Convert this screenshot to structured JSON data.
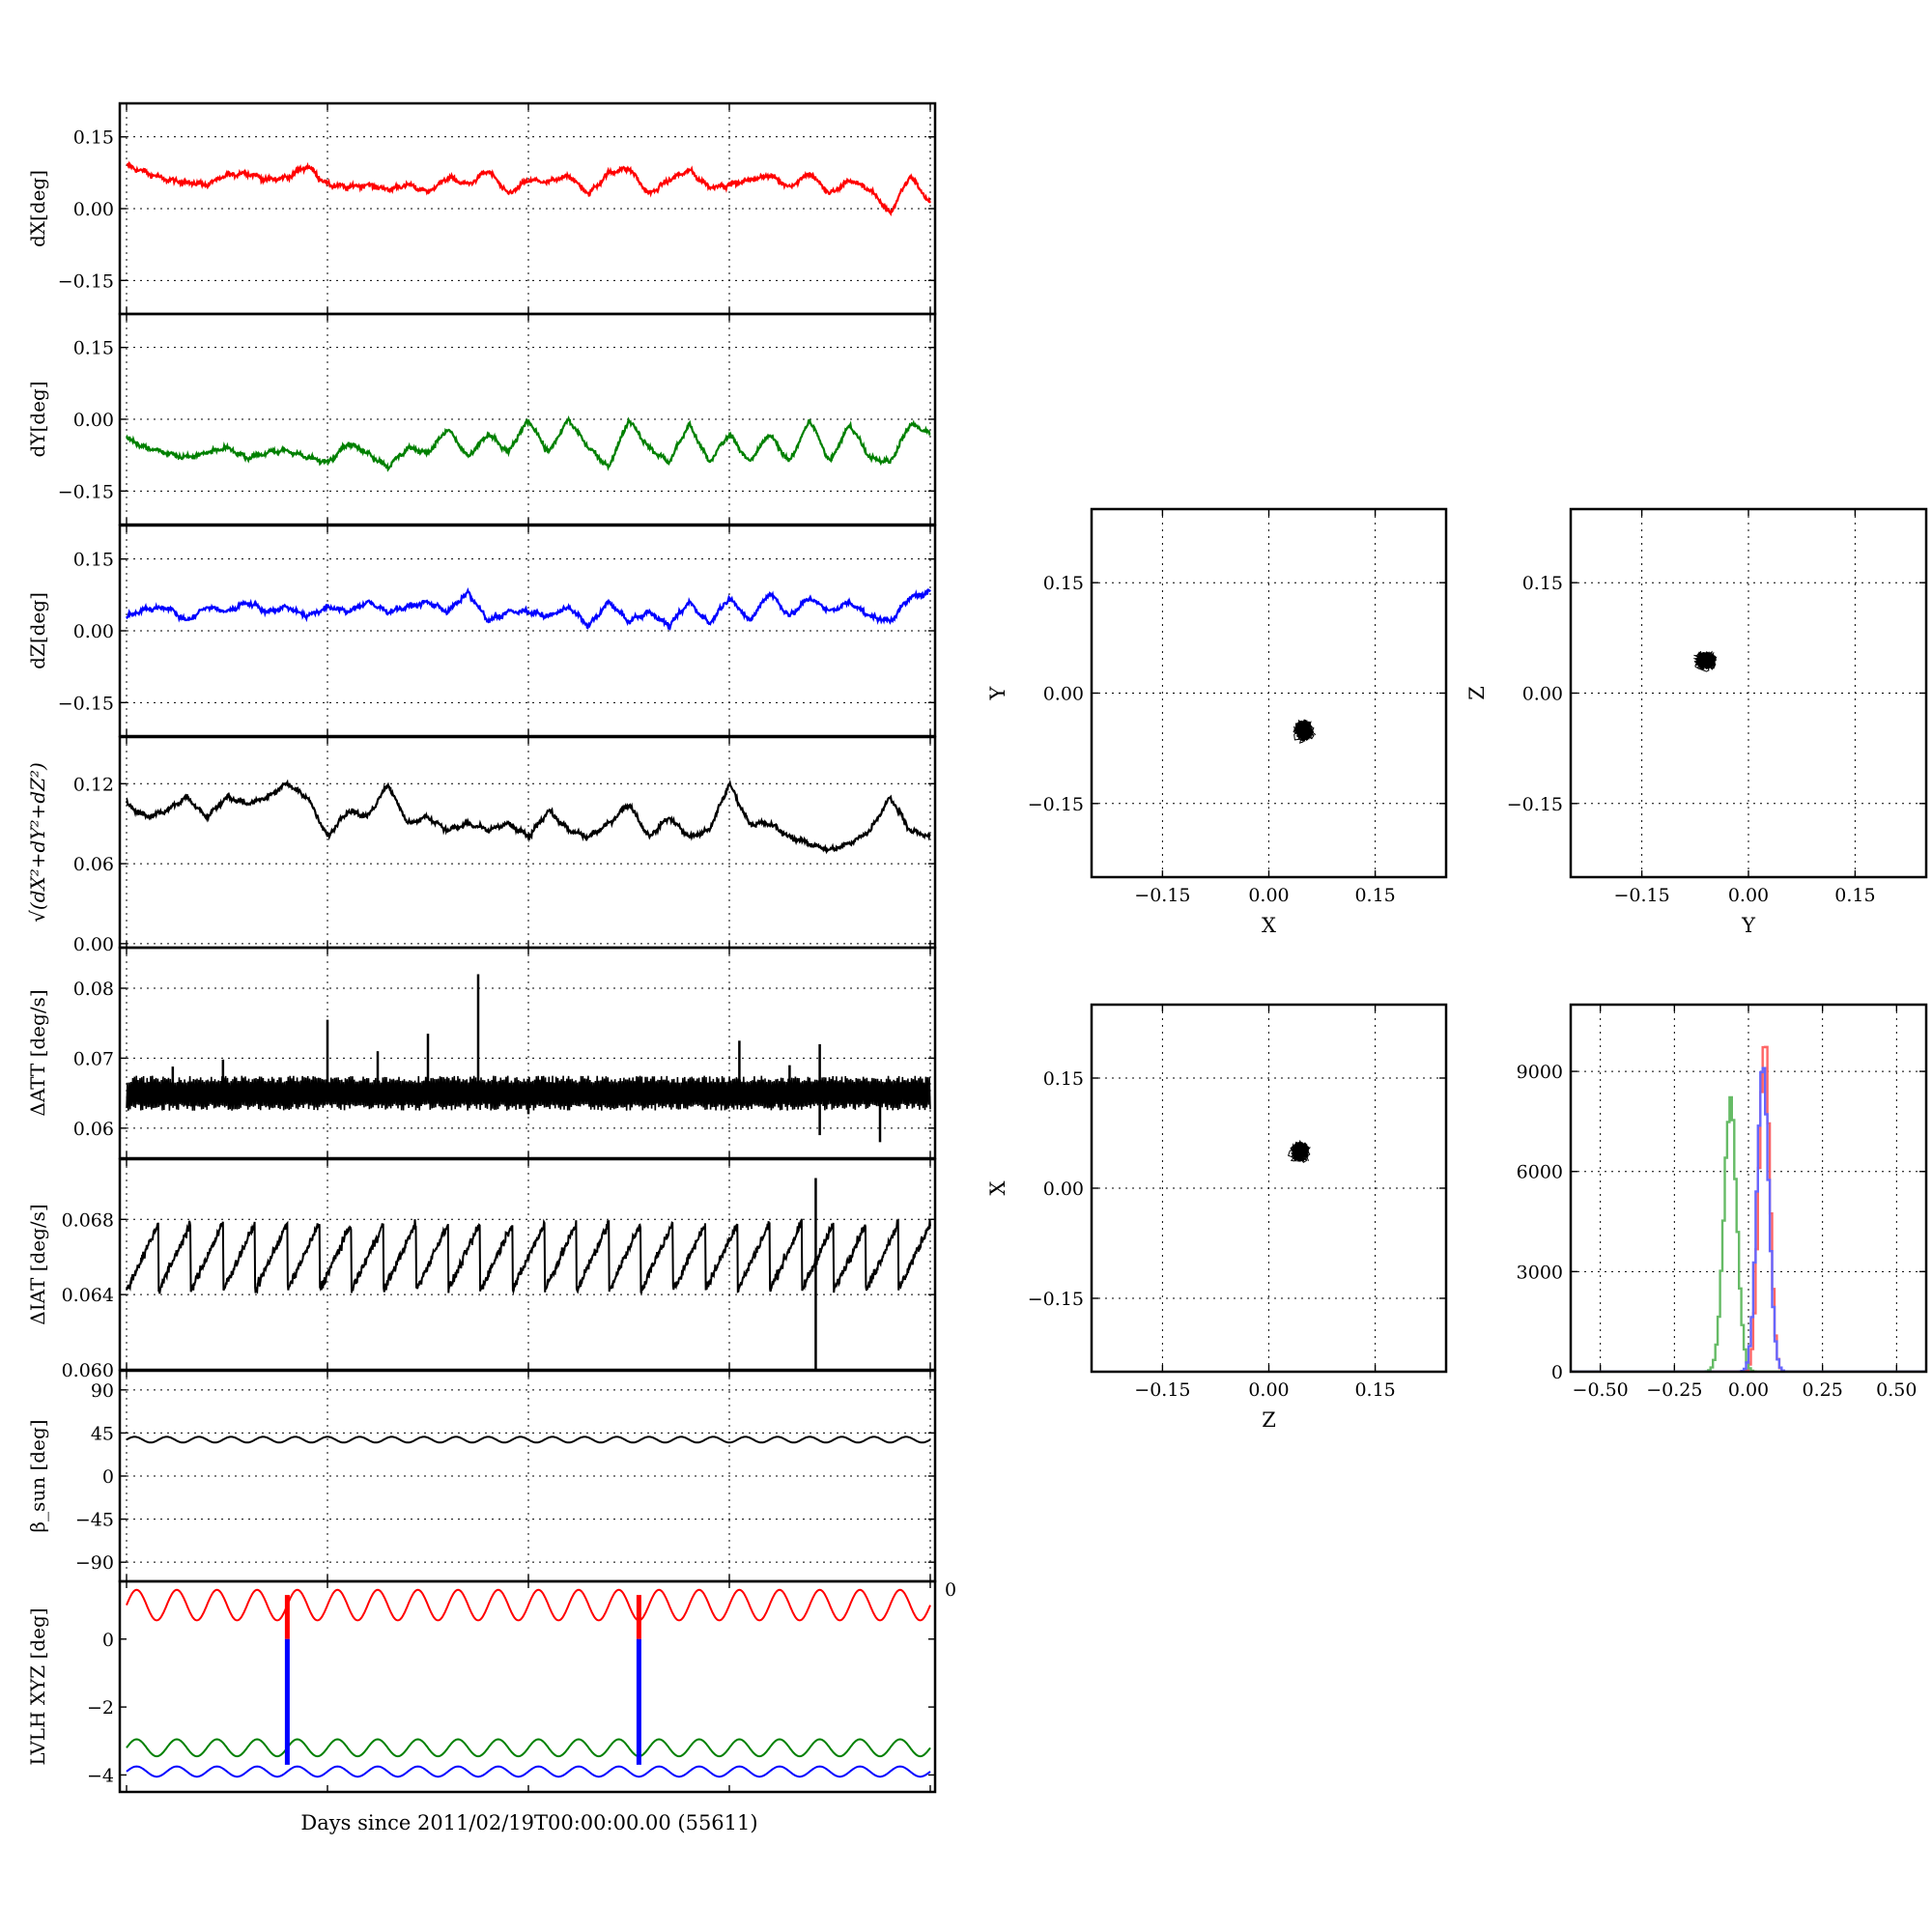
{
  "figure": {
    "xlabel": "Days since 2011/02/19T00:00:00.00 (55611)",
    "stray_tick": "0"
  },
  "colors": {
    "x": "#ff0000",
    "y": "#008000",
    "z": "#0000ff",
    "k": "#000000",
    "hist_x": "#ff6666",
    "hist_y": "#66bb66",
    "hist_z": "#6666ff"
  },
  "chart_data": [
    {
      "id": "dx",
      "type": "line",
      "ylabel": "dX[deg]",
      "ylim": [
        -0.22,
        0.22
      ],
      "yticks": [
        0.15,
        0.0,
        -0.15
      ],
      "ytick_labels": [
        "0.15",
        "0.00",
        "−0.15"
      ],
      "xlim": [
        0,
        40
      ],
      "xticks": [
        0,
        10,
        20,
        30,
        40
      ],
      "grid": true,
      "color": "x",
      "series": [
        {
          "x": [
            0,
            1,
            2,
            3,
            4,
            5,
            6,
            7,
            8,
            9,
            10,
            11,
            12,
            13,
            14,
            15,
            16,
            17,
            18,
            19,
            20,
            21,
            22,
            23,
            24,
            25,
            26,
            27,
            28,
            29,
            30,
            31,
            32,
            33,
            34,
            35,
            36,
            37,
            38,
            39,
            40
          ],
          "y": [
            0.09,
            0.075,
            0.06,
            0.055,
            0.05,
            0.07,
            0.075,
            0.06,
            0.065,
            0.09,
            0.05,
            0.045,
            0.05,
            0.04,
            0.05,
            0.035,
            0.065,
            0.05,
            0.08,
            0.03,
            0.06,
            0.055,
            0.07,
            0.03,
            0.075,
            0.085,
            0.03,
            0.06,
            0.08,
            0.045,
            0.05,
            0.06,
            0.07,
            0.045,
            0.075,
            0.03,
            0.06,
            0.04,
            -0.01,
            0.07,
            0.01
          ]
        }
      ]
    },
    {
      "id": "dy",
      "type": "line",
      "ylabel": "dY[deg]",
      "ylim": [
        -0.22,
        0.22
      ],
      "yticks": [
        0.15,
        0.0,
        -0.15
      ],
      "ytick_labels": [
        "0.15",
        "0.00",
        "−0.15"
      ],
      "xlim": [
        0,
        40
      ],
      "xticks": [
        0,
        10,
        20,
        30,
        40
      ],
      "grid": true,
      "color": "y",
      "series": [
        {
          "x": [
            0,
            1,
            2,
            3,
            4,
            5,
            6,
            7,
            8,
            9,
            10,
            11,
            12,
            13,
            14,
            15,
            16,
            17,
            18,
            19,
            20,
            21,
            22,
            23,
            24,
            25,
            26,
            27,
            28,
            29,
            30,
            31,
            32,
            33,
            34,
            35,
            36,
            37,
            38,
            39,
            40
          ],
          "y": [
            -0.04,
            -0.06,
            -0.07,
            -0.08,
            -0.07,
            -0.06,
            -0.08,
            -0.07,
            -0.065,
            -0.08,
            -0.09,
            -0.05,
            -0.07,
            -0.1,
            -0.06,
            -0.07,
            -0.02,
            -0.08,
            -0.03,
            -0.07,
            0.0,
            -0.07,
            0.0,
            -0.06,
            -0.1,
            0.0,
            -0.06,
            -0.09,
            -0.01,
            -0.09,
            -0.03,
            -0.09,
            -0.03,
            -0.09,
            0.0,
            -0.09,
            -0.01,
            -0.08,
            -0.09,
            -0.01,
            -0.03
          ]
        }
      ]
    },
    {
      "id": "dz",
      "type": "line",
      "ylabel": "dZ[deg]",
      "ylim": [
        -0.22,
        0.22
      ],
      "yticks": [
        0.15,
        0.0,
        -0.15
      ],
      "ytick_labels": [
        "0.15",
        "0.00",
        "−0.15"
      ],
      "xlim": [
        0,
        40
      ],
      "xticks": [
        0,
        10,
        20,
        30,
        40
      ],
      "grid": true,
      "color": "z",
      "series": [
        {
          "x": [
            0,
            1,
            2,
            3,
            4,
            5,
            6,
            7,
            8,
            9,
            10,
            11,
            12,
            13,
            14,
            15,
            16,
            17,
            18,
            19,
            20,
            21,
            22,
            23,
            24,
            25,
            26,
            27,
            28,
            29,
            30,
            31,
            32,
            33,
            34,
            35,
            36,
            37,
            38,
            39,
            40
          ],
          "y": [
            0.03,
            0.045,
            0.05,
            0.02,
            0.05,
            0.04,
            0.06,
            0.04,
            0.05,
            0.03,
            0.05,
            0.04,
            0.06,
            0.04,
            0.05,
            0.06,
            0.04,
            0.08,
            0.02,
            0.04,
            0.04,
            0.03,
            0.05,
            0.01,
            0.06,
            0.02,
            0.04,
            0.01,
            0.06,
            0.015,
            0.07,
            0.02,
            0.08,
            0.03,
            0.07,
            0.04,
            0.06,
            0.03,
            0.02,
            0.07,
            0.08
          ]
        }
      ]
    },
    {
      "id": "mag",
      "type": "line",
      "ylabel": "√(dX²+dY²+dZ²)",
      "ylim": [
        -0.003,
        0.155
      ],
      "yticks": [
        0.12,
        0.06,
        0.0
      ],
      "ytick_labels": [
        "0.12",
        "0.06",
        "0.00"
      ],
      "xlim": [
        0,
        40
      ],
      "xticks": [
        0,
        10,
        20,
        30,
        40
      ],
      "grid": true,
      "color": "k",
      "series": [
        {
          "x": [
            0,
            1,
            2,
            3,
            4,
            5,
            6,
            7,
            8,
            9,
            10,
            11,
            12,
            13,
            14,
            15,
            16,
            17,
            18,
            19,
            20,
            21,
            22,
            23,
            24,
            25,
            26,
            27,
            28,
            29,
            30,
            31,
            32,
            33,
            34,
            35,
            36,
            37,
            38,
            39,
            40
          ],
          "y": [
            0.105,
            0.095,
            0.1,
            0.11,
            0.095,
            0.11,
            0.105,
            0.11,
            0.12,
            0.11,
            0.08,
            0.1,
            0.095,
            0.12,
            0.09,
            0.095,
            0.085,
            0.09,
            0.085,
            0.09,
            0.08,
            0.1,
            0.085,
            0.08,
            0.09,
            0.105,
            0.08,
            0.095,
            0.08,
            0.085,
            0.12,
            0.09,
            0.09,
            0.08,
            0.075,
            0.07,
            0.075,
            0.085,
            0.11,
            0.085,
            0.08
          ]
        }
      ]
    },
    {
      "id": "datt",
      "type": "line",
      "ylabel": "ΔATT [deg/s]",
      "ylim": [
        0.0557,
        0.0858
      ],
      "yticks": [
        0.08,
        0.07,
        0.06
      ],
      "ytick_labels": [
        "0.08",
        "0.07",
        "0.06"
      ],
      "xlim": [
        0,
        40
      ],
      "xticks": [
        0,
        10,
        20,
        30,
        40
      ],
      "grid": true,
      "color": "k",
      "base": 0.065,
      "band": 0.0025,
      "spikes": [
        [
          2.3,
          0.0688
        ],
        [
          4.8,
          0.0698
        ],
        [
          10,
          0.0755
        ],
        [
          12.5,
          0.071
        ],
        [
          15,
          0.0735
        ],
        [
          17.5,
          0.082
        ],
        [
          20,
          0.062
        ],
        [
          30.5,
          0.0725
        ],
        [
          33,
          0.069
        ],
        [
          34.5,
          0.072
        ],
        [
          34.5,
          0.059
        ],
        [
          37.5,
          0.058
        ]
      ]
    },
    {
      "id": "diat",
      "type": "line",
      "ylabel": "ΔIAT [deg/s]",
      "ylim": [
        0.06,
        0.0712
      ],
      "yticks": [
        0.068,
        0.064,
        0.06
      ],
      "ytick_labels": [
        "0.068",
        "0.064",
        "0.060"
      ],
      "xlim": [
        0,
        40
      ],
      "xticks": [
        0,
        10,
        20,
        30,
        40
      ],
      "grid": true,
      "color": "k",
      "sawtooth": {
        "period": 1.6,
        "low": 0.0642,
        "high": 0.0678
      },
      "spikes": [
        [
          34.3,
          0.0702
        ],
        [
          34.3,
          0.06
        ]
      ]
    },
    {
      "id": "beta",
      "type": "line",
      "ylabel": "β_sun [deg]",
      "ylim": [
        -110,
        110
      ],
      "yticks": [
        90,
        45,
        0,
        -45,
        -90
      ],
      "ytick_labels": [
        "90",
        "45",
        "0",
        "−45",
        "−90"
      ],
      "xlim": [
        0,
        40
      ],
      "xticks": [
        0,
        10,
        20,
        30,
        40
      ],
      "grid": true,
      "color": "k",
      "level": 38,
      "amplitude": 3,
      "period": 1.6
    },
    {
      "id": "lvlh",
      "type": "line",
      "ylabel": "LVLH XYZ [deg]",
      "ylim": [
        -4.5,
        1.7
      ],
      "yticks": [
        0,
        -2,
        -4
      ],
      "ytick_labels": [
        "0",
        "−2",
        "−4"
      ],
      "xlim": [
        0,
        40
      ],
      "xticks": [
        0,
        10,
        20,
        30,
        40
      ],
      "grid": false,
      "series": [
        {
          "color": "x",
          "level": 1.0,
          "amplitude": 0.45,
          "period": 2.0
        },
        {
          "color": "y",
          "level": -3.2,
          "amplitude": 0.25,
          "period": 2.0
        },
        {
          "color": "z",
          "level": -3.9,
          "amplitude": 0.15,
          "period": 2.0
        }
      ],
      "jumps": [
        8,
        25.5
      ]
    },
    {
      "id": "xy",
      "type": "scatter",
      "xlabel": "X",
      "ylabel": "Y",
      "xlim": [
        -0.25,
        0.25
      ],
      "ylim": [
        -0.25,
        0.25
      ],
      "ticks": [
        -0.15,
        0.0,
        0.15
      ],
      "tick_labels": [
        "−0.15",
        "0.00",
        "0.15"
      ],
      "grid": true,
      "center": [
        0.05,
        -0.05
      ],
      "spread": [
        0.03,
        0.035
      ],
      "tilt": 0.6
    },
    {
      "id": "yz",
      "type": "scatter",
      "xlabel": "Y",
      "ylabel": "Z",
      "xlim": [
        -0.25,
        0.25
      ],
      "ylim": [
        -0.25,
        0.25
      ],
      "ticks": [
        -0.15,
        0.0,
        0.15
      ],
      "tick_labels": [
        "−0.15",
        "0.00",
        "0.15"
      ],
      "grid": true,
      "center": [
        -0.06,
        0.045
      ],
      "spread": [
        0.035,
        0.027
      ],
      "tilt": 0.5
    },
    {
      "id": "zx",
      "type": "scatter",
      "xlabel": "Z",
      "ylabel": "X",
      "xlim": [
        -0.25,
        0.25
      ],
      "ylim": [
        -0.25,
        0.25
      ],
      "ticks": [
        -0.15,
        0.0,
        0.15
      ],
      "tick_labels": [
        "−0.15",
        "0.00",
        "0.15"
      ],
      "grid": true,
      "center": [
        0.045,
        0.05
      ],
      "spread": [
        0.028,
        0.032
      ],
      "tilt": -0.5
    },
    {
      "id": "hist",
      "type": "histogram",
      "xlim": [
        -0.6,
        0.6
      ],
      "ylim": [
        0,
        11000
      ],
      "xticks": [
        -0.5,
        -0.25,
        0.0,
        0.25,
        0.5
      ],
      "xtick_labels": [
        "−0.50",
        "−0.25",
        "0.00",
        "0.25",
        "0.50"
      ],
      "yticks": [
        9000,
        6000,
        3000,
        0
      ],
      "ytick_labels": [
        "9000",
        "6000",
        "3000",
        "0"
      ],
      "grid": true,
      "series": [
        {
          "name": "",
          "color": "hist_x",
          "mean": 0.05,
          "sigma": 0.018,
          "peak": 10600
        },
        {
          "name": "",
          "color": "hist_y",
          "mean": -0.065,
          "sigma": 0.022,
          "peak": 8300
        },
        {
          "name": "",
          "color": "hist_z",
          "mean": 0.045,
          "sigma": 0.02,
          "peak": 9700
        }
      ]
    }
  ]
}
